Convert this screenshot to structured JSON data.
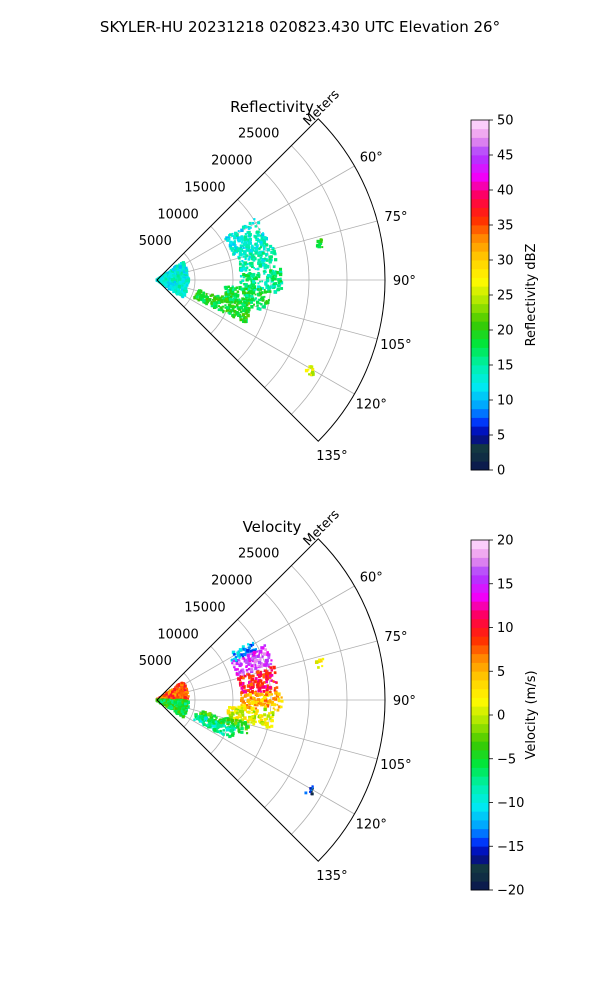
{
  "figure": {
    "title": "SKYLER-HU  20231218  020823.430 UTC Elevation 26°"
  },
  "chart_data": [
    {
      "type": "polar-sector",
      "title": "Reflectivity",
      "radial_axis_label": "Meters",
      "r_ticks": [
        5000,
        10000,
        15000,
        20000,
        25000
      ],
      "r_tick_labels": [
        "5000",
        "10000",
        "15000",
        "20000",
        "25000"
      ],
      "rmax": 30000,
      "theta_range_deg": [
        45,
        135
      ],
      "theta_ticks_deg": [
        60,
        75,
        90,
        105,
        120,
        135
      ],
      "theta_tick_labels": [
        "60°",
        "75°",
        "90°",
        "105°",
        "120°",
        "135°"
      ],
      "grid": true,
      "colorbar": {
        "label": "Reflectivity dBZ",
        "min": 0,
        "max": 50,
        "ticks": [
          0,
          5,
          10,
          15,
          20,
          25,
          30,
          35,
          40,
          45,
          50
        ],
        "tick_labels": [
          "0",
          "5",
          "10",
          "15",
          "20",
          "25",
          "30",
          "35",
          "40",
          "45",
          "50"
        ]
      },
      "echo_regions": [
        {
          "theta_deg": [
            58,
            72
          ],
          "r_m": [
            10500,
            15500
          ],
          "value": 13
        },
        {
          "theta_deg": [
            72,
            84
          ],
          "r_m": [
            11000,
            16000
          ],
          "value": 14
        },
        {
          "theta_deg": [
            85,
            96
          ],
          "r_m": [
            11000,
            16500
          ],
          "value": 16
        },
        {
          "theta_deg": [
            95,
            106
          ],
          "r_m": [
            9000,
            15000
          ],
          "value": 18
        },
        {
          "theta_deg": [
            104,
            116
          ],
          "r_m": [
            5500,
            13000
          ],
          "value": 19
        },
        {
          "theta_deg": [
            55,
            125
          ],
          "r_m": [
            0,
            4200
          ],
          "value": 13
        },
        {
          "theta_deg": [
            76,
            79
          ],
          "r_m": [
            21500,
            22500
          ],
          "value": 20
        },
        {
          "theta_deg": [
            119,
            122
          ],
          "r_m": [
            23000,
            24000
          ],
          "value": 26
        }
      ]
    },
    {
      "type": "polar-sector",
      "title": "Velocity",
      "radial_axis_label": "Meters",
      "r_ticks": [
        5000,
        10000,
        15000,
        20000,
        25000
      ],
      "r_tick_labels": [
        "5000",
        "10000",
        "15000",
        "20000",
        "25000"
      ],
      "rmax": 30000,
      "theta_range_deg": [
        45,
        135
      ],
      "theta_ticks_deg": [
        60,
        75,
        90,
        105,
        120,
        135
      ],
      "theta_tick_labels": [
        "60°",
        "75°",
        "90°",
        "105°",
        "120°",
        "135°"
      ],
      "grid": true,
      "colorbar": {
        "label": "Velocity (m/s)",
        "min": -20,
        "max": 20,
        "ticks": [
          -20,
          -15,
          -10,
          -5,
          0,
          5,
          10,
          15,
          20
        ],
        "tick_labels": [
          "−20",
          "−15",
          "−10",
          "−5",
          "0",
          "5",
          "10",
          "15",
          "20"
        ]
      },
      "echo_regions": [
        {
          "theta_deg": [
            58,
            64
          ],
          "r_m": [
            11000,
            15000
          ],
          "value": -12
        },
        {
          "theta_deg": [
            63,
            74
          ],
          "r_m": [
            11000,
            16000
          ],
          "value": 16
        },
        {
          "theta_deg": [
            74,
            86
          ],
          "r_m": [
            11000,
            16000
          ],
          "value": 10
        },
        {
          "theta_deg": [
            86,
            95
          ],
          "r_m": [
            11000,
            16500
          ],
          "value": 5
        },
        {
          "theta_deg": [
            95,
            104
          ],
          "r_m": [
            9500,
            15500
          ],
          "value": 1
        },
        {
          "theta_deg": [
            104,
            112
          ],
          "r_m": [
            6000,
            13000
          ],
          "value": -4
        },
        {
          "theta_deg": [
            110,
            118
          ],
          "r_m": [
            5500,
            11000
          ],
          "value": -8
        },
        {
          "theta_deg": [
            55,
            90
          ],
          "r_m": [
            0,
            4200
          ],
          "value": 8
        },
        {
          "theta_deg": [
            90,
            125
          ],
          "r_m": [
            0,
            4200
          ],
          "value": -5
        },
        {
          "theta_deg": [
            76,
            79
          ],
          "r_m": [
            21500,
            22500
          ],
          "value": 2
        },
        {
          "theta_deg": [
            119,
            122
          ],
          "r_m": [
            23000,
            24000
          ],
          "value": -16
        }
      ]
    }
  ]
}
